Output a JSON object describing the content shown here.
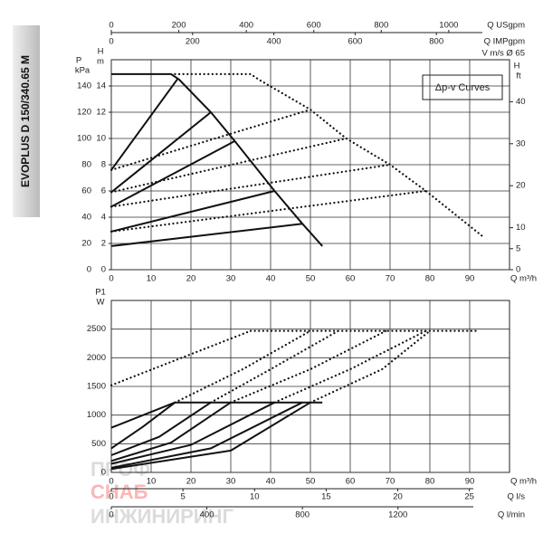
{
  "label": "EVOPLUS D 150/340.65 M",
  "legend": "Δp-v Curves",
  "watermark": [
    "ПРОФ",
    "СНАБ",
    "ИНЖИНИРИНГ"
  ],
  "chart_data": [
    {
      "type": "line",
      "xlabel": "Q m³/h",
      "xlim": [
        0,
        100
      ],
      "xticks": [
        0,
        10,
        20,
        30,
        40,
        50,
        60,
        70,
        80,
        90
      ],
      "ylabel": "H",
      "yunit": "m",
      "ylim": [
        0,
        16
      ],
      "yticks": [
        0,
        2,
        4,
        6,
        8,
        10,
        12,
        14
      ],
      "y2label": "H",
      "y2unit": "ft",
      "y2lim": [
        0,
        50
      ],
      "y2ticks": [
        0,
        5,
        10,
        20,
        30,
        40
      ],
      "left_axes": [
        {
          "label": "P",
          "unit": "kPa",
          "lim": [
            0,
            160
          ],
          "ticks": [
            0,
            20,
            40,
            60,
            80,
            100,
            120,
            140
          ]
        }
      ],
      "top_axes": [
        {
          "label": "Q USgpm",
          "lim": [
            0,
            1180
          ],
          "ticks": [
            0,
            200,
            400,
            600,
            800,
            1000
          ]
        },
        {
          "label": "Q IMPgpm",
          "lim": [
            0,
            980
          ],
          "ticks": [
            0,
            200,
            400,
            600,
            800
          ]
        }
      ],
      "top_note": "V m/s Ø 65",
      "grid": true,
      "series": [
        {
          "style": "solid",
          "color": "#111",
          "x": [
            0,
            15,
            17,
            25,
            31,
            41,
            48,
            53
          ],
          "values": [
            14.9,
            14.9,
            14.5,
            12,
            9.8,
            6,
            3.5,
            1.8
          ]
        },
        {
          "style": "solid",
          "color": "#111",
          "x": [
            0,
            16.8
          ],
          "values": [
            7.6,
            14.6
          ]
        },
        {
          "style": "solid",
          "color": "#111",
          "x": [
            0,
            25
          ],
          "values": [
            5.9,
            12
          ]
        },
        {
          "style": "solid",
          "color": "#111",
          "x": [
            0,
            31
          ],
          "values": [
            4.8,
            9.8
          ]
        },
        {
          "style": "solid",
          "color": "#111",
          "x": [
            0,
            41
          ],
          "values": [
            2.9,
            6
          ]
        },
        {
          "style": "solid",
          "color": "#111",
          "x": [
            0,
            48
          ],
          "values": [
            1.8,
            3.5
          ]
        },
        {
          "style": "dotted",
          "color": "#111",
          "x": [
            16,
            35,
            37,
            50,
            59,
            70,
            79,
            93
          ],
          "values": [
            14.9,
            14.9,
            14.5,
            12.2,
            10,
            8,
            6,
            2.6
          ]
        },
        {
          "style": "dotted",
          "color": "#111",
          "x": [
            0,
            50
          ],
          "values": [
            7.6,
            12.2
          ]
        },
        {
          "style": "dotted",
          "color": "#111",
          "x": [
            0,
            59
          ],
          "values": [
            5.9,
            10
          ]
        },
        {
          "style": "dotted",
          "color": "#111",
          "x": [
            0,
            70
          ],
          "values": [
            4.8,
            8
          ]
        },
        {
          "style": "dotted",
          "color": "#111",
          "x": [
            0,
            79
          ],
          "values": [
            2.9,
            6
          ]
        }
      ]
    },
    {
      "type": "line",
      "xlabel": "Q m³/h",
      "xlim": [
        0,
        100
      ],
      "xticks": [
        0,
        10,
        20,
        30,
        40,
        50,
        60,
        70,
        80,
        90
      ],
      "ylabel": "P1",
      "yunit": "W",
      "ylim": [
        0,
        3000
      ],
      "yticks": [
        0,
        500,
        1000,
        1500,
        2000,
        2500
      ],
      "bottom_axes": [
        {
          "label": "Q l/s",
          "lim": [
            0,
            27.8
          ],
          "ticks": [
            0,
            5,
            10,
            15,
            20,
            25
          ]
        },
        {
          "label": "Q l/min",
          "lim": [
            0,
            1667
          ],
          "ticks": [
            0,
            400,
            800,
            1200
          ]
        }
      ],
      "grid": true,
      "series": [
        {
          "style": "solid",
          "color": "#111",
          "x": [
            16,
            53
          ],
          "values": [
            1220,
            1220
          ]
        },
        {
          "style": "solid",
          "color": "#111",
          "x": [
            0,
            16
          ],
          "values": [
            780,
            1220
          ]
        },
        {
          "style": "solid",
          "color": "#111",
          "x": [
            0,
            8,
            16
          ],
          "values": [
            420,
            800,
            1220
          ]
        },
        {
          "style": "solid",
          "color": "#111",
          "x": [
            0,
            12,
            25
          ],
          "values": [
            300,
            620,
            1220
          ]
        },
        {
          "style": "solid",
          "color": "#111",
          "x": [
            0,
            15,
            30
          ],
          "values": [
            200,
            520,
            1220
          ]
        },
        {
          "style": "solid",
          "color": "#111",
          "x": [
            0,
            20,
            41
          ],
          "values": [
            150,
            480,
            1220
          ]
        },
        {
          "style": "solid",
          "color": "#111",
          "x": [
            0,
            25,
            48
          ],
          "values": [
            80,
            420,
            1220
          ]
        },
        {
          "style": "solid",
          "color": "#111",
          "x": [
            0,
            30,
            50
          ],
          "values": [
            60,
            380,
            1220
          ]
        },
        {
          "style": "dotted",
          "color": "#111",
          "x": [
            35,
            92
          ],
          "values": [
            2470,
            2470
          ]
        },
        {
          "style": "dotted",
          "color": "#111",
          "x": [
            0,
            35
          ],
          "values": [
            1520,
            2470
          ]
        },
        {
          "style": "dotted",
          "color": "#111",
          "x": [
            16,
            33,
            50
          ],
          "values": [
            1220,
            1800,
            2470
          ]
        },
        {
          "style": "dotted",
          "color": "#111",
          "x": [
            25,
            40,
            57
          ],
          "values": [
            1220,
            1800,
            2470
          ]
        },
        {
          "style": "dotted",
          "color": "#111",
          "x": [
            30,
            50,
            69
          ],
          "values": [
            1220,
            1800,
            2470
          ]
        },
        {
          "style": "dotted",
          "color": "#111",
          "x": [
            41,
            60,
            79
          ],
          "values": [
            1220,
            1800,
            2470
          ]
        },
        {
          "style": "dotted",
          "color": "#111",
          "x": [
            50,
            68,
            80
          ],
          "values": [
            1220,
            1800,
            2470
          ]
        }
      ]
    }
  ]
}
